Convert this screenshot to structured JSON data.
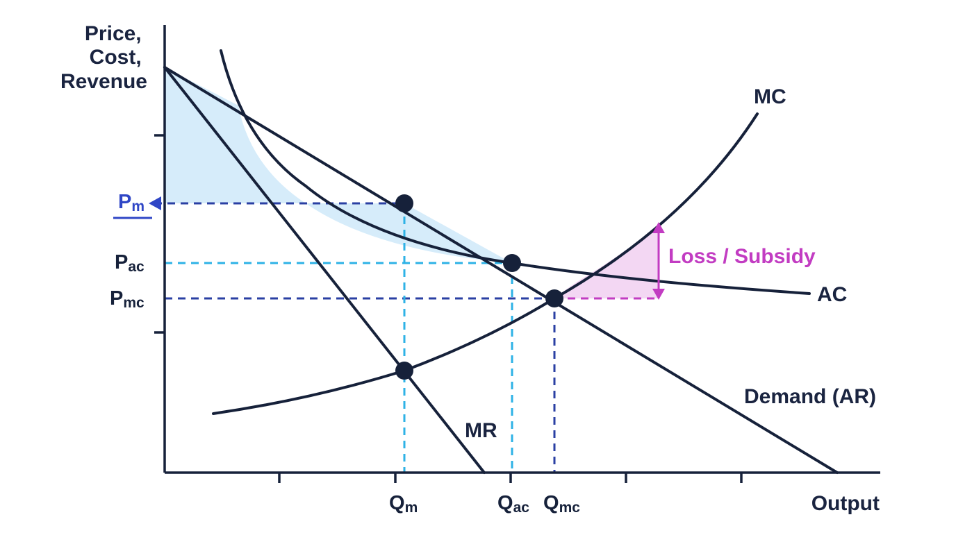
{
  "colors": {
    "ink": "#16213a",
    "gain_fill": "#d6ecfa",
    "loss_fill": "#f3d7f3",
    "pm_blue": "#2f46c6",
    "ac_cyan": "#2eb2e6",
    "mc_navy": "#2a3fa3",
    "loss_magenta": "#c23cc2"
  },
  "axes": {
    "y_title_lines": [
      "Price,",
      "Cost,",
      "Revenue"
    ],
    "x_title": "Output"
  },
  "curves": {
    "mc": "MC",
    "ac": "AC",
    "demand": "Demand (AR)",
    "mr": "MR"
  },
  "price_labels": {
    "pm": {
      "main": "P",
      "sub": "m"
    },
    "pac": {
      "main": "P",
      "sub": "ac"
    },
    "pmc": {
      "main": "P",
      "sub": "mc"
    }
  },
  "quantity_labels": {
    "qm": {
      "main": "Q",
      "sub": "m"
    },
    "qac": {
      "main": "Q",
      "sub": "ac"
    },
    "qmc": {
      "main": "Q",
      "sub": "mc"
    }
  },
  "annotations": {
    "loss": "Loss / Subsidy"
  }
}
